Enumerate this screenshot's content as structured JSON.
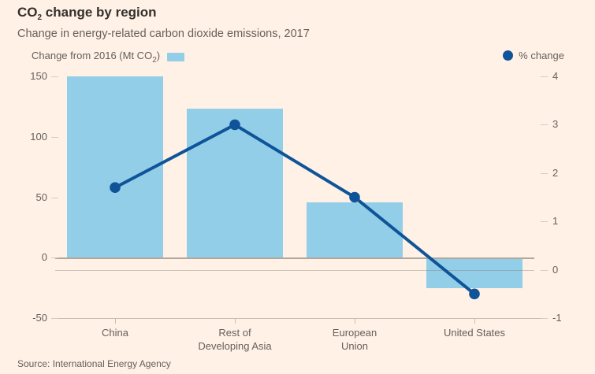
{
  "header": {
    "title_prefix": "CO",
    "title_sub": "2",
    "title_suffix": " change by region",
    "subtitle": "Change in energy-related carbon dioxide emissions, 2017"
  },
  "legend": {
    "bars_label_prefix": "Change from 2016 (Mt CO",
    "bars_label_sub": "2",
    "bars_label_suffix": ")",
    "bars_swatch": "light-blue-rect",
    "line_marker": "dark-blue-dot",
    "line_label": "% change"
  },
  "source": "Source: International Energy Agency",
  "colors": {
    "background": "#fff1e5",
    "bar": "#93cee8",
    "line": "#0f5499",
    "title_text": "#33302e",
    "muted_text": "#66605c",
    "zero_line": "#b2a79c",
    "axis_line": "#cdbdaf",
    "tick_dash": "#dccabc"
  },
  "chart_data": {
    "type": "bar+line",
    "title": "CO2 change by region",
    "subtitle": "Change in energy-related carbon dioxide emissions, 2017",
    "categories": [
      "China",
      "Rest of\nDeveloping Asia",
      "European\nUnion",
      "United States"
    ],
    "series": [
      {
        "name": "Change from 2016 (Mt CO2)",
        "type": "bar",
        "axis": "left",
        "values": [
          150,
          123,
          46,
          -25
        ]
      },
      {
        "name": "% change",
        "type": "line",
        "axis": "right",
        "values": [
          1.7,
          3.0,
          1.5,
          -0.5
        ]
      }
    ],
    "left_axis": {
      "ticks": [
        150,
        100,
        50,
        0,
        -50
      ],
      "min": -50,
      "max": 150
    },
    "right_axis": {
      "ticks": [
        4,
        3,
        2,
        1,
        0,
        -1
      ],
      "min": -1,
      "max": 4
    },
    "grid": "zero-lines-only",
    "legend_position": "top",
    "source": "Source: International Energy Agency"
  }
}
